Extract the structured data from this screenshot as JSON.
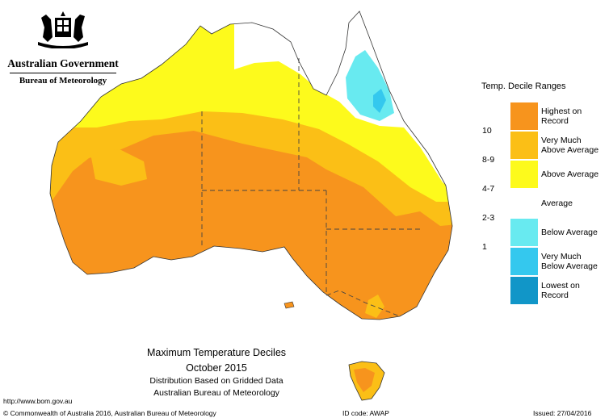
{
  "logo": {
    "org_name": "Australian Government",
    "bureau_name": "Bureau of Meteorology",
    "crest_icon": "coat-of-arms-icon"
  },
  "map": {
    "title": "Maximum Temperature Deciles",
    "period": "October 2015",
    "note_1": "Distribution Based on Gridded Data",
    "note_2": "Australian Bureau of Meteorology",
    "base_color": "#f7941d"
  },
  "legend": {
    "title": "Temp. Decile Ranges",
    "categories": [
      {
        "label_1": "Highest on",
        "label_2": "Record",
        "color": "#f7941d"
      },
      {
        "label_1": "Very Much",
        "label_2": "Above Average",
        "color": "#fbbf16"
      },
      {
        "label_1": "Above Average",
        "label_2": "",
        "color": "#fdfa1c"
      },
      {
        "label_1": "Average",
        "label_2": "",
        "color": "#ffffff"
      },
      {
        "label_1": "Below Average",
        "label_2": "",
        "color": "#68eaf0"
      },
      {
        "label_1": "Very Much",
        "label_2": "Below Average",
        "color": "#34c8ee"
      },
      {
        "label_1": "Lowest on",
        "label_2": "Record",
        "color": "#1196c8"
      }
    ],
    "decile_labels": [
      {
        "text": "10"
      },
      {
        "text": "8-9"
      },
      {
        "text": "4-7"
      },
      {
        "text": "2-3"
      },
      {
        "text": "1"
      }
    ]
  },
  "footer": {
    "url": "http://www.bom.gov.au",
    "copyright": "© Commonwealth of Australia 2016, Australian Bureau of Meteorology",
    "id_code": "ID code: AWAP",
    "issued": "Issued: 27/04/2016"
  }
}
